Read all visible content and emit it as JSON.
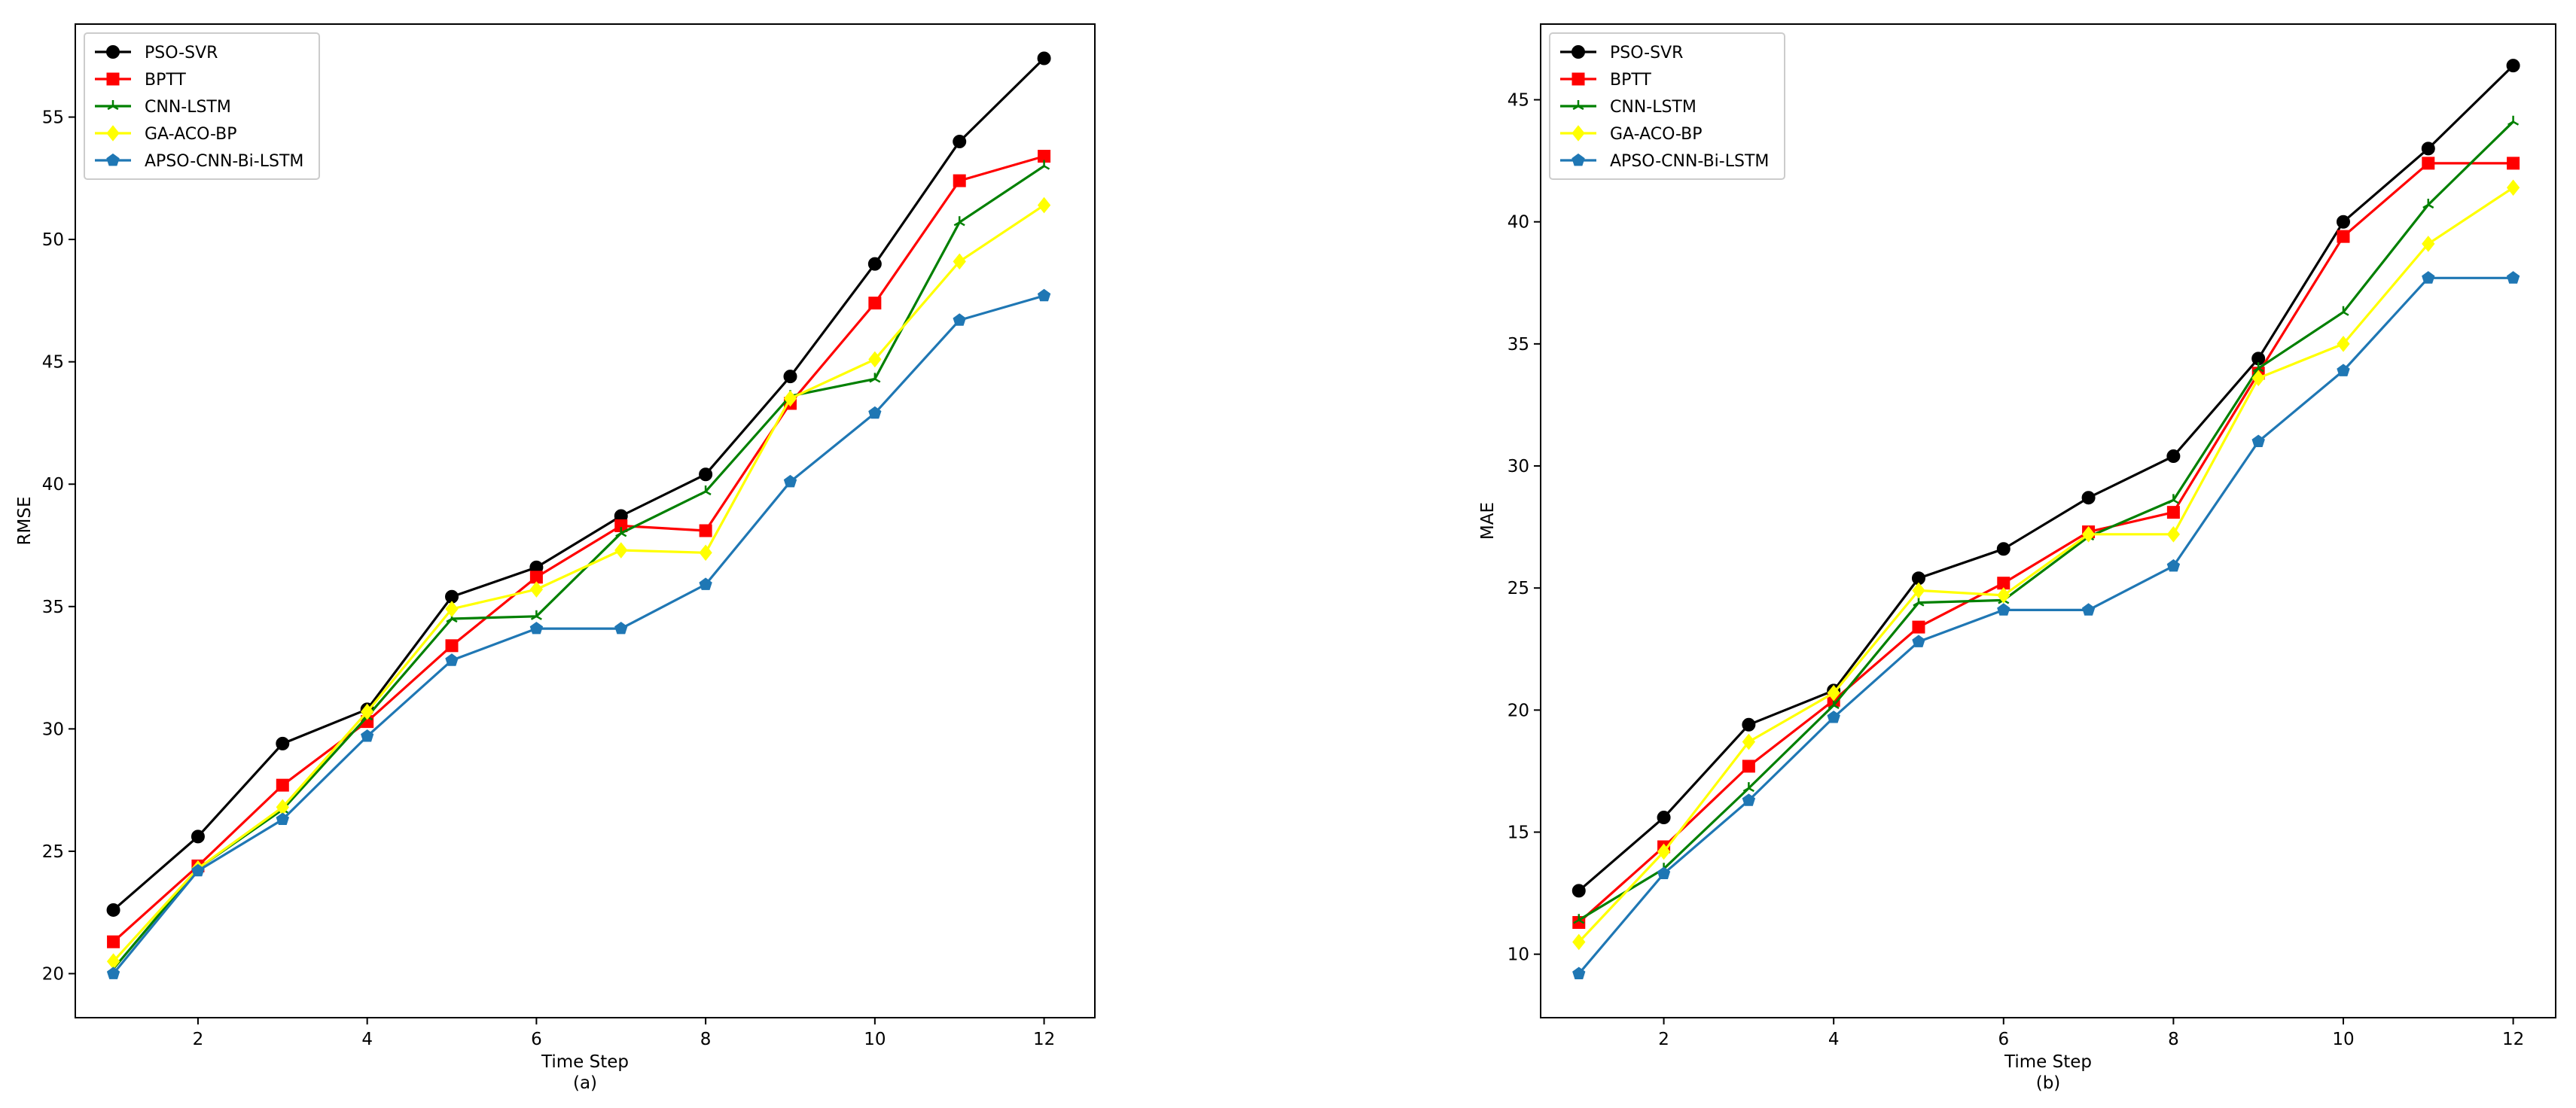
{
  "chart_data": [
    {
      "type": "line",
      "panel_label": "(a)",
      "xlabel": "Time Step",
      "ylabel": "RMSE",
      "xlim": [
        0.55,
        12.6
      ],
      "ylim": [
        18.2,
        58.8
      ],
      "xticks": [
        2,
        4,
        6,
        8,
        10,
        12
      ],
      "yticks": [
        20,
        25,
        30,
        35,
        40,
        45,
        50,
        55
      ],
      "grid": false,
      "legend_position": "top-left",
      "x": [
        1,
        2,
        3,
        4,
        5,
        6,
        7,
        8,
        9,
        10,
        11,
        12
      ],
      "series": [
        {
          "name": "PSO-SVR",
          "color": "#000000",
          "marker": "circle",
          "values": [
            22.6,
            25.6,
            29.4,
            30.8,
            35.4,
            36.6,
            38.7,
            40.4,
            44.4,
            49.0,
            54.0,
            57.4
          ]
        },
        {
          "name": "BPTT",
          "color": "#ff0000",
          "marker": "square",
          "values": [
            21.3,
            24.4,
            27.7,
            30.3,
            33.4,
            36.2,
            38.3,
            38.1,
            43.3,
            47.4,
            52.4,
            53.4
          ]
        },
        {
          "name": "CNN-LSTM",
          "color": "#008000",
          "marker": "tri",
          "values": [
            20.2,
            24.3,
            26.7,
            30.5,
            34.5,
            34.6,
            38.0,
            39.7,
            43.6,
            44.3,
            50.7,
            53.0
          ]
        },
        {
          "name": "GA-ACO-BP",
          "color": "#ffff00",
          "marker": "diamond",
          "values": [
            20.5,
            24.3,
            26.8,
            30.7,
            34.9,
            35.7,
            37.3,
            37.2,
            43.5,
            45.1,
            49.1,
            51.4
          ]
        },
        {
          "name": "APSO-CNN-Bi-LSTM",
          "color": "#1f77b4",
          "marker": "pentagon",
          "values": [
            20.0,
            24.2,
            26.3,
            29.7,
            32.8,
            34.1,
            34.1,
            35.9,
            40.1,
            42.9,
            46.7,
            47.7
          ]
        }
      ]
    },
    {
      "type": "line",
      "panel_label": "(b)",
      "xlabel": "Time Step",
      "ylabel": "MAE",
      "xlim": [
        0.55,
        12.5
      ],
      "ylim": [
        7.4,
        48.1
      ],
      "xticks": [
        2,
        4,
        6,
        8,
        10,
        12
      ],
      "yticks": [
        10,
        15,
        20,
        25,
        30,
        35,
        40,
        45
      ],
      "grid": false,
      "legend_position": "top-left",
      "x": [
        1,
        2,
        3,
        4,
        5,
        6,
        7,
        8,
        9,
        10,
        11,
        12
      ],
      "series": [
        {
          "name": "PSO-SVR",
          "color": "#000000",
          "marker": "circle",
          "values": [
            12.6,
            15.6,
            19.4,
            20.8,
            25.4,
            26.6,
            28.7,
            30.4,
            34.4,
            40.0,
            43.0,
            46.4
          ]
        },
        {
          "name": "BPTT",
          "color": "#ff0000",
          "marker": "square",
          "values": [
            11.3,
            14.4,
            17.7,
            20.4,
            23.4,
            25.2,
            27.3,
            28.1,
            33.8,
            39.4,
            42.4,
            42.4
          ]
        },
        {
          "name": "CNN-LSTM",
          "color": "#008000",
          "marker": "tri",
          "values": [
            11.4,
            13.5,
            16.8,
            20.2,
            24.4,
            24.5,
            27.1,
            28.6,
            34.0,
            36.3,
            40.7,
            44.1
          ]
        },
        {
          "name": "GA-ACO-BP",
          "color": "#ffff00",
          "marker": "diamond",
          "values": [
            10.5,
            14.2,
            18.7,
            20.7,
            24.9,
            24.7,
            27.2,
            27.2,
            33.6,
            35.0,
            39.1,
            41.4
          ]
        },
        {
          "name": "APSO-CNN-Bi-LSTM",
          "color": "#1f77b4",
          "marker": "pentagon",
          "values": [
            9.2,
            13.3,
            16.3,
            19.7,
            22.8,
            24.1,
            24.1,
            25.9,
            31.0,
            33.9,
            37.7,
            37.7
          ]
        }
      ]
    }
  ]
}
